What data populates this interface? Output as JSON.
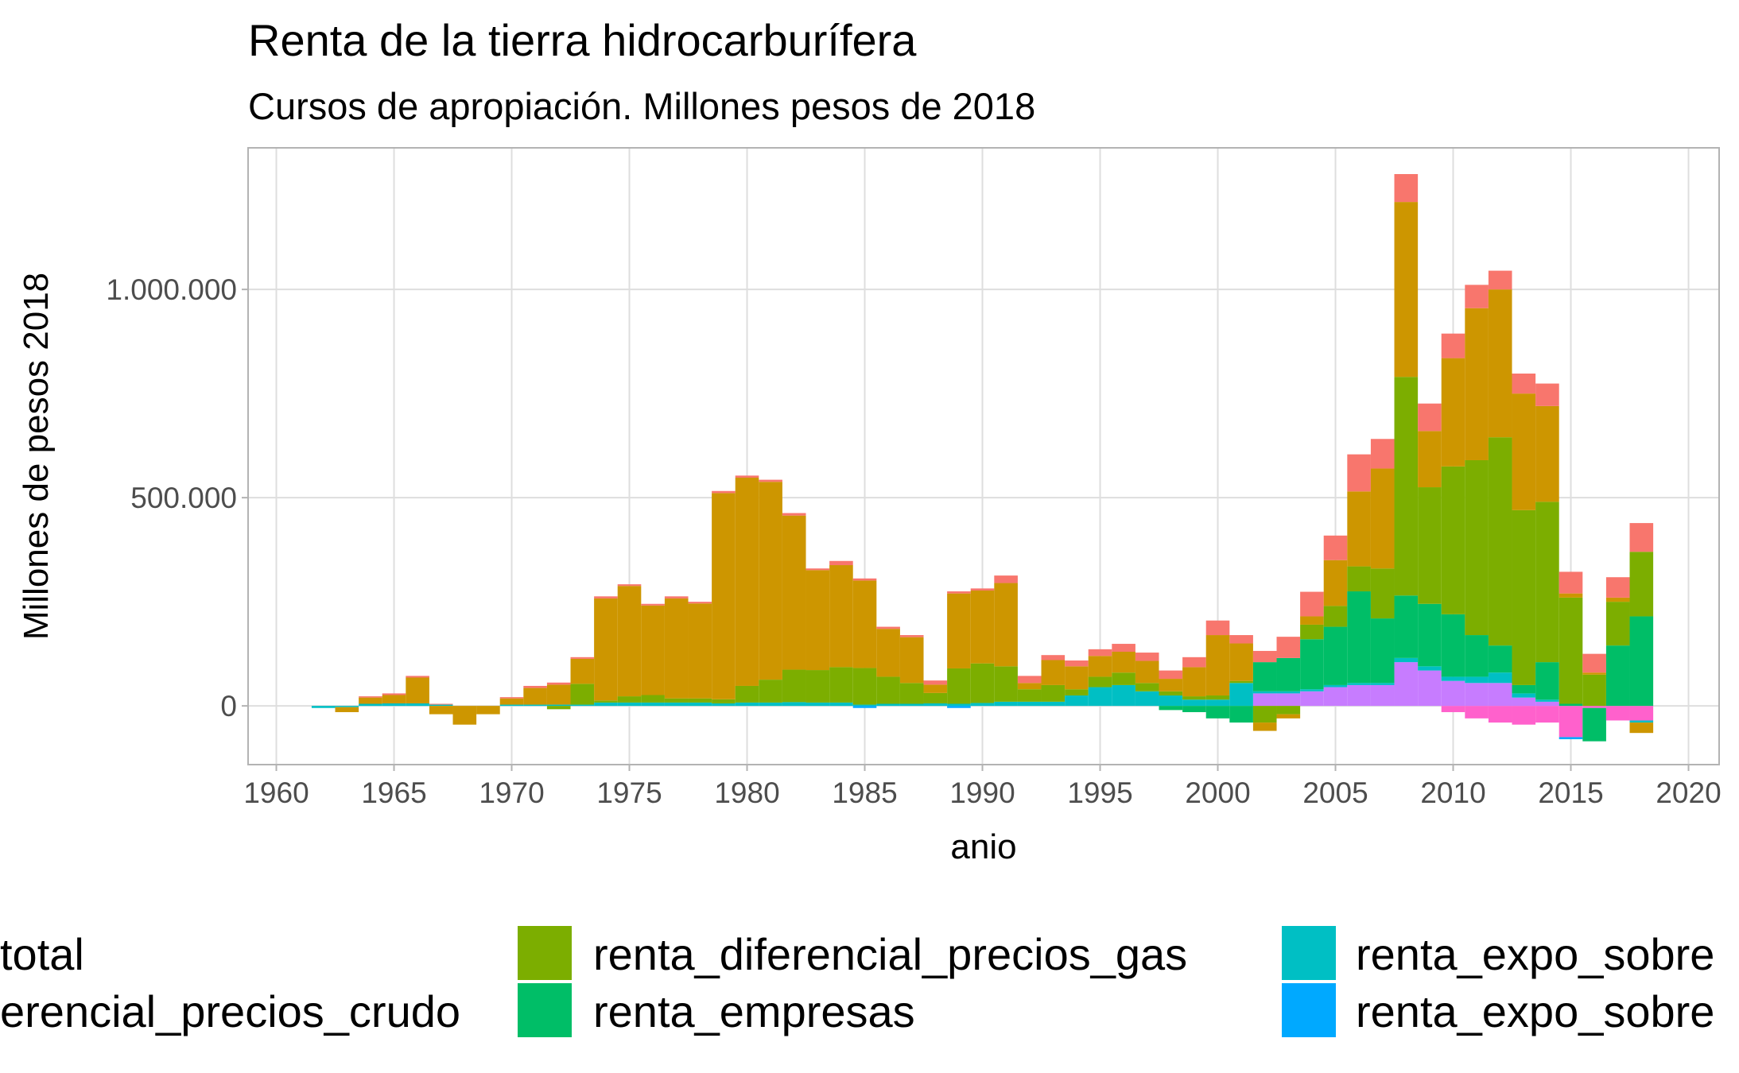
{
  "chart_data": {
    "type": "stacked_bar",
    "title": "Renta de la tierra hidrocarburífera",
    "subtitle": "Cursos de apropiación. Millones pesos de 2018",
    "x_label": "anio",
    "y_label": "Millones de pesos 2018",
    "x": [
      1962,
      1963,
      1964,
      1965,
      1966,
      1967,
      1968,
      1969,
      1970,
      1971,
      1972,
      1973,
      1974,
      1975,
      1976,
      1977,
      1978,
      1979,
      1980,
      1981,
      1982,
      1983,
      1984,
      1985,
      1986,
      1987,
      1988,
      1989,
      1990,
      1991,
      1992,
      1993,
      1994,
      1995,
      1996,
      1997,
      1998,
      1999,
      2000,
      2001,
      2002,
      2003,
      2004,
      2005,
      2006,
      2007,
      2008,
      2009,
      2010,
      2011,
      2012,
      2013,
      2014,
      2015,
      2016,
      2017,
      2018
    ],
    "series": [
      {
        "name": "total",
        "color": "#F8766D",
        "values": [
          0,
          0,
          3000,
          4000,
          4000,
          2000,
          0,
          0,
          3000,
          5000,
          5000,
          4000,
          5000,
          4000,
          4000,
          5000,
          4000,
          5000,
          5000,
          5000,
          6000,
          4000,
          10000,
          5000,
          5000,
          5000,
          10000,
          5000,
          5000,
          18000,
          17000,
          12000,
          14000,
          16000,
          19000,
          20000,
          20000,
          24000,
          35000,
          20000,
          27000,
          51000,
          59000,
          59000,
          89000,
          71000,
          67000,
          66000,
          59000,
          56000,
          45000,
          48000,
          54000,
          52000,
          45000,
          49000,
          69000
        ]
      },
      {
        "name": "erencial_precios_crudo",
        "color": "#CD9600",
        "values": [
          0,
          -12000,
          15000,
          20000,
          62000,
          -20000,
          -45000,
          -20000,
          15000,
          40000,
          48000,
          60000,
          245000,
          265000,
          215000,
          240000,
          228000,
          495000,
          500000,
          475000,
          370000,
          240000,
          245000,
          210000,
          115000,
          110000,
          20000,
          180000,
          175000,
          200000,
          15000,
          60000,
          55000,
          50000,
          50000,
          53000,
          30000,
          70000,
          145000,
          90000,
          -20000,
          -10000,
          20000,
          110000,
          180000,
          240000,
          420000,
          135000,
          260000,
          365000,
          355000,
          280000,
          230000,
          10000,
          5000,
          10000,
          -25000
        ]
      },
      {
        "name": "renta_diferencial_precios_gas",
        "color": "#7CAE00",
        "values": [
          0,
          0,
          0,
          0,
          0,
          0,
          0,
          0,
          0,
          0,
          -8000,
          50000,
          5000,
          15000,
          18000,
          10000,
          10000,
          10000,
          40000,
          55000,
          78000,
          78000,
          85000,
          88000,
          65000,
          50000,
          25000,
          85000,
          95000,
          85000,
          30000,
          40000,
          15000,
          25000,
          30000,
          20000,
          10000,
          8000,
          10000,
          5000,
          -40000,
          -20000,
          35000,
          50000,
          60000,
          120000,
          525000,
          280000,
          355000,
          420000,
          500000,
          420000,
          385000,
          255000,
          75000,
          105000,
          155000
        ]
      },
      {
        "name": "renta_empresas",
        "color": "#00BE67",
        "values": [
          0,
          0,
          0,
          0,
          0,
          0,
          0,
          0,
          0,
          0,
          0,
          0,
          0,
          0,
          0,
          0,
          0,
          0,
          0,
          0,
          0,
          0,
          0,
          0,
          0,
          0,
          0,
          0,
          0,
          0,
          0,
          0,
          0,
          0,
          0,
          0,
          -10000,
          -15000,
          -30000,
          -40000,
          70000,
          80000,
          120000,
          140000,
          220000,
          155000,
          150000,
          150000,
          150000,
          100000,
          65000,
          20000,
          90000,
          5000,
          -80000,
          145000,
          215000
        ]
      },
      {
        "name": "renta_expo_sobre",
        "color": "#00BFC4",
        "values": [
          -5000,
          -3000,
          5000,
          6000,
          6000,
          3000,
          0,
          0,
          3000,
          3000,
          3000,
          3000,
          8000,
          8000,
          8000,
          8000,
          8000,
          6000,
          8000,
          8000,
          9000,
          8000,
          8000,
          3000,
          5000,
          5000,
          6000,
          5000,
          7000,
          10000,
          10000,
          10000,
          25000,
          45000,
          50000,
          35000,
          25000,
          15000,
          15000,
          55000,
          5000,
          5000,
          5000,
          5000,
          5000,
          5000,
          10000,
          10000,
          10000,
          15000,
          25000,
          10000,
          5000,
          0,
          0,
          0,
          -5000
        ]
      },
      {
        "name": "renta_expo_sobre",
        "color": "#00A9FF",
        "values": [
          0,
          0,
          0,
          0,
          0,
          0,
          0,
          0,
          0,
          0,
          0,
          0,
          0,
          0,
          0,
          0,
          0,
          0,
          0,
          0,
          0,
          0,
          0,
          -5000,
          0,
          0,
          0,
          -5000,
          0,
          0,
          0,
          0,
          0,
          0,
          0,
          0,
          0,
          0,
          0,
          0,
          0,
          0,
          0,
          0,
          0,
          0,
          0,
          0,
          0,
          0,
          0,
          0,
          0,
          -5000,
          0,
          0,
          0
        ]
      },
      {
        "color": "#C77CFF",
        "values": [
          0,
          0,
          0,
          0,
          0,
          0,
          0,
          0,
          0,
          0,
          0,
          0,
          0,
          0,
          0,
          0,
          0,
          0,
          0,
          0,
          0,
          0,
          0,
          0,
          0,
          0,
          0,
          0,
          0,
          0,
          0,
          0,
          0,
          0,
          0,
          0,
          0,
          0,
          0,
          0,
          30000,
          30000,
          35000,
          45000,
          50000,
          50000,
          105000,
          85000,
          60000,
          55000,
          55000,
          20000,
          10000,
          0,
          0,
          0,
          0
        ]
      },
      {
        "color": "#FF61CC",
        "values": [
          0,
          0,
          0,
          0,
          0,
          0,
          0,
          0,
          0,
          0,
          0,
          0,
          0,
          0,
          0,
          0,
          0,
          0,
          0,
          0,
          0,
          0,
          0,
          0,
          0,
          0,
          0,
          0,
          0,
          0,
          0,
          0,
          0,
          0,
          0,
          0,
          0,
          0,
          0,
          0,
          0,
          0,
          0,
          0,
          0,
          0,
          0,
          0,
          -15000,
          -30000,
          -40000,
          -45000,
          -40000,
          -75000,
          -5000,
          -35000,
          -35000
        ]
      }
    ],
    "xlim": [
      1958.8,
      2021.3
    ],
    "xticks": [
      1960,
      1965,
      1970,
      1975,
      1980,
      1985,
      1990,
      1995,
      2000,
      2005,
      2010,
      2015,
      2020
    ],
    "ylim": [
      -141000,
      1340000
    ],
    "yticks": [
      0,
      {
        "value": 500000,
        "label": "500.000"
      },
      {
        "value": 1000000,
        "label": "1.000.000"
      }
    ],
    "grid": true
  }
}
